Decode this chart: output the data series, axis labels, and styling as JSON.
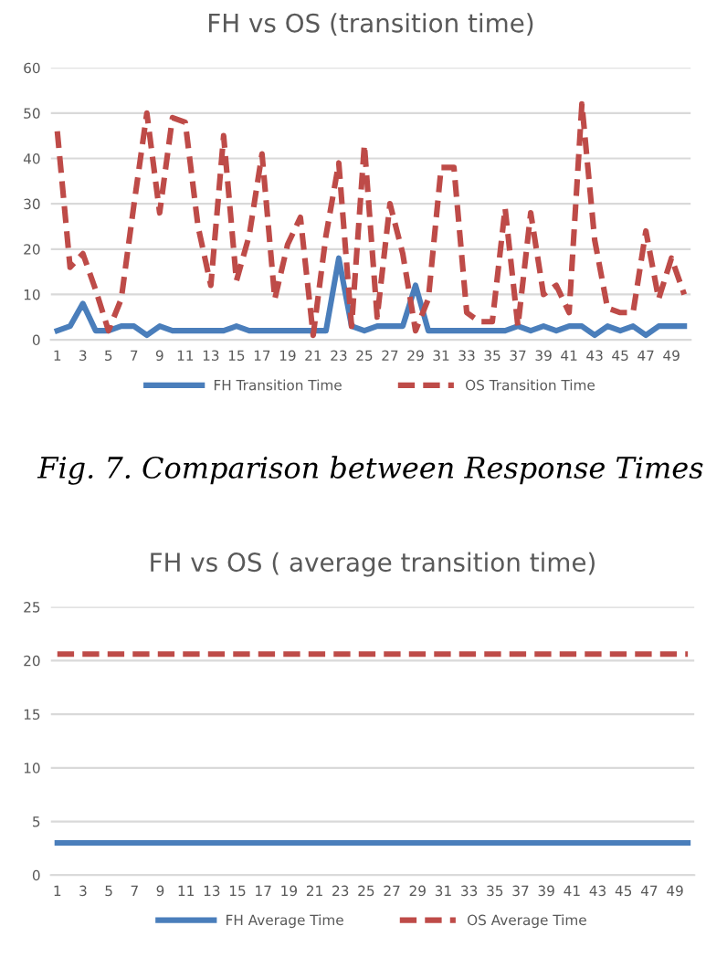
{
  "chart_data": [
    {
      "type": "line",
      "title": "FH vs OS (transition time)",
      "categories": [
        "1",
        null,
        "3",
        null,
        "5",
        null,
        "7",
        null,
        "9",
        null,
        "11",
        null,
        "13",
        null,
        "15",
        null,
        "17",
        null,
        "19",
        null,
        "21",
        null,
        "23",
        null,
        "25",
        null,
        "27",
        null,
        "29",
        null,
        "31",
        null,
        "33",
        null,
        "35",
        null,
        "37",
        null,
        "39",
        null,
        "41",
        null,
        "43",
        null,
        "45",
        null,
        "47",
        null,
        "49",
        null
      ],
      "series": [
        {
          "name": "FH Transition Time",
          "color": "#4a7ebb",
          "line_style": "solid",
          "values": [
            2,
            3,
            8,
            2,
            2,
            3,
            3,
            1,
            3,
            2,
            2,
            2,
            2,
            2,
            3,
            2,
            2,
            2,
            2,
            2,
            2,
            2,
            18,
            3,
            2,
            3,
            3,
            3,
            12,
            2,
            2,
            2,
            2,
            2,
            2,
            2,
            3,
            2,
            3,
            2,
            3,
            3,
            1,
            3,
            2,
            3,
            1,
            3,
            3,
            3
          ]
        },
        {
          "name": "OS Transition Time",
          "color": "#be4b48",
          "line_style": "dashed",
          "values": [
            46,
            16,
            19,
            11,
            2,
            9,
            30,
            50,
            28,
            49,
            48,
            25,
            12,
            45,
            13,
            23,
            41,
            9,
            21,
            27,
            1,
            23,
            39,
            3,
            43,
            5,
            30,
            19,
            2,
            9,
            38,
            38,
            6,
            4,
            4,
            29,
            3,
            28,
            10,
            12,
            6,
            52,
            22,
            7,
            6,
            6,
            24,
            9,
            18,
            10
          ]
        }
      ],
      "ylim": [
        0,
        60
      ],
      "yticks": [
        0,
        10,
        20,
        30,
        40,
        50,
        60
      ],
      "grid": "y",
      "legend": "bottom",
      "marker": "none",
      "annotations": [
        "Fig. 7. Comparison between Response Times"
      ]
    },
    {
      "type": "line",
      "title": "FH vs OS ( average transition time)",
      "categories": [
        "1",
        null,
        "3",
        null,
        "5",
        null,
        "7",
        null,
        "9",
        null,
        "11",
        null,
        "13",
        null,
        "15",
        null,
        "17",
        null,
        "19",
        null,
        "21",
        null,
        "23",
        null,
        "25",
        null,
        "27",
        null,
        "29",
        null,
        "31",
        null,
        "33",
        null,
        "35",
        null,
        "37",
        null,
        "39",
        null,
        "41",
        null,
        "43",
        null,
        "45",
        null,
        "47",
        null,
        "49",
        null
      ],
      "series": [
        {
          "name": "FH Average Time",
          "color": "#4a7ebb",
          "line_style": "solid",
          "values": [
            3,
            3,
            3,
            3,
            3,
            3,
            3,
            3,
            3,
            3,
            3,
            3,
            3,
            3,
            3,
            3,
            3,
            3,
            3,
            3,
            3,
            3,
            3,
            3,
            3,
            3,
            3,
            3,
            3,
            3,
            3,
            3,
            3,
            3,
            3,
            3,
            3,
            3,
            3,
            3,
            3,
            3,
            3,
            3,
            3,
            3,
            3,
            3,
            3,
            3
          ]
        },
        {
          "name": "OS Average Time",
          "color": "#be4b48",
          "line_style": "dashed",
          "values": [
            20.6,
            20.6,
            20.6,
            20.6,
            20.6,
            20.6,
            20.6,
            20.6,
            20.6,
            20.6,
            20.6,
            20.6,
            20.6,
            20.6,
            20.6,
            20.6,
            20.6,
            20.6,
            20.6,
            20.6,
            20.6,
            20.6,
            20.6,
            20.6,
            20.6,
            20.6,
            20.6,
            20.6,
            20.6,
            20.6,
            20.6,
            20.6,
            20.6,
            20.6,
            20.6,
            20.6,
            20.6,
            20.6,
            20.6,
            20.6,
            20.6,
            20.6,
            20.6,
            20.6,
            20.6,
            20.6,
            20.6,
            20.6,
            20.6,
            20.6
          ]
        }
      ],
      "ylim": [
        0,
        25
      ],
      "yticks": [
        0,
        5,
        10,
        15,
        20,
        25
      ],
      "grid": "y",
      "legend": "bottom",
      "marker": "none"
    }
  ]
}
